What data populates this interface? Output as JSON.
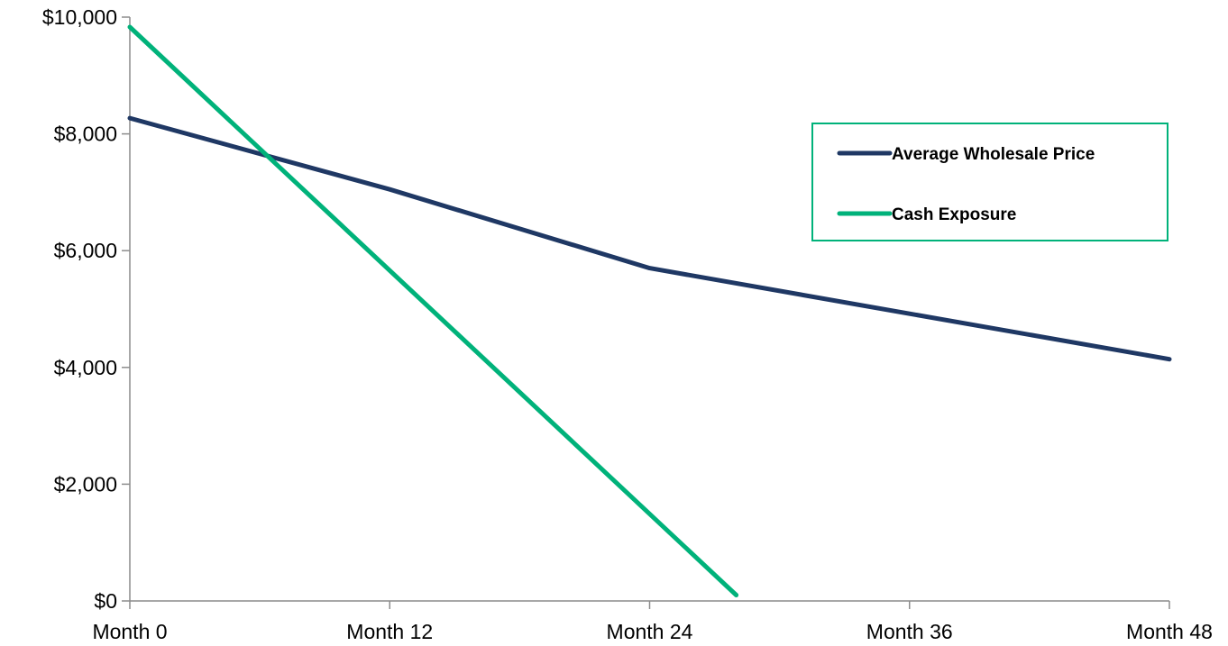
{
  "chart_data": {
    "type": "line",
    "title": "",
    "xlabel": "",
    "ylabel": "",
    "x": [
      0,
      12,
      24,
      36,
      48
    ],
    "x_tick_labels": [
      "Month 0",
      "Month 12",
      "Month 24",
      "Month 36",
      "Month 48"
    ],
    "xlim": [
      0,
      48
    ],
    "ylim": [
      0,
      10000
    ],
    "y_tick_values": [
      0,
      2000,
      4000,
      6000,
      8000,
      10000
    ],
    "y_tick_labels": [
      "$0",
      "$2,000",
      "$4,000",
      "$6,000",
      "$8,000",
      "$10,000"
    ],
    "grid": false,
    "legend_position": "top-right",
    "series": [
      {
        "name": "Average Wholesale Price",
        "color": "#1f3864",
        "points": [
          [
            0,
            8270
          ],
          [
            12,
            7050
          ],
          [
            24,
            5700
          ],
          [
            36,
            4920
          ],
          [
            48,
            4140
          ]
        ]
      },
      {
        "name": "Cash Exposure",
        "color": "#00b27a",
        "points": [
          [
            0,
            9830
          ],
          [
            28,
            100
          ]
        ]
      }
    ],
    "legend_border_color": "#00b27a"
  }
}
